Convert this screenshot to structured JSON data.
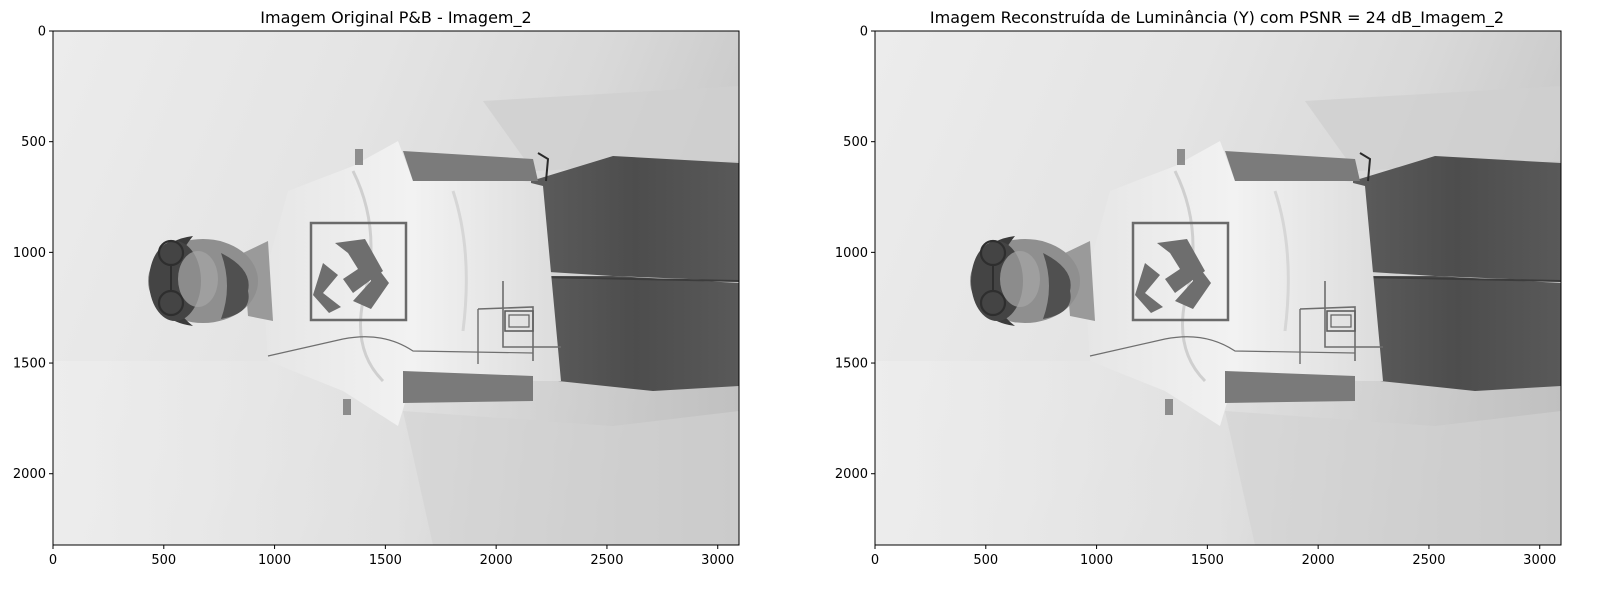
{
  "figure": {
    "panels": [
      {
        "title": "Imagem Original P&B - Imagem_2",
        "image": "grayscale-photo-man-lying-sideways",
        "x_ticks": [
          "0",
          "500",
          "1000",
          "1500",
          "2000",
          "2500",
          "3000"
        ],
        "y_ticks": [
          "0",
          "500",
          "1000",
          "1500",
          "2000"
        ]
      },
      {
        "title": "Imagem Reconstruída de Luminância (Y) com PSNR = 24 dB_Imagem_2",
        "image": "grayscale-reconstructed-photo-man-lying-sideways",
        "x_ticks": [
          "0",
          "500",
          "1000",
          "1500",
          "2000",
          "2500",
          "3000"
        ],
        "y_ticks": [
          "0",
          "500",
          "1000",
          "1500",
          "2000"
        ]
      }
    ]
  },
  "chart_data": [
    {
      "type": "image",
      "title": "Imagem Original P&B - Imagem_2",
      "xlim": [
        0,
        3096
      ],
      "ylim": [
        2322,
        0
      ],
      "x_ticks": [
        0,
        500,
        1000,
        1500,
        2000,
        2500,
        3000
      ],
      "y_ticks": [
        0,
        500,
        1000,
        1500,
        2000
      ],
      "colormap": "gray"
    },
    {
      "type": "image",
      "title": "Imagem Reconstruída de Luminância (Y) com PSNR = 24 dB_Imagem_2",
      "xlim": [
        0,
        3096
      ],
      "ylim": [
        2322,
        0
      ],
      "x_ticks": [
        0,
        500,
        1000,
        1500,
        2000,
        2500,
        3000
      ],
      "y_ticks": [
        0,
        500,
        1000,
        1500,
        2000
      ],
      "colormap": "gray"
    }
  ]
}
